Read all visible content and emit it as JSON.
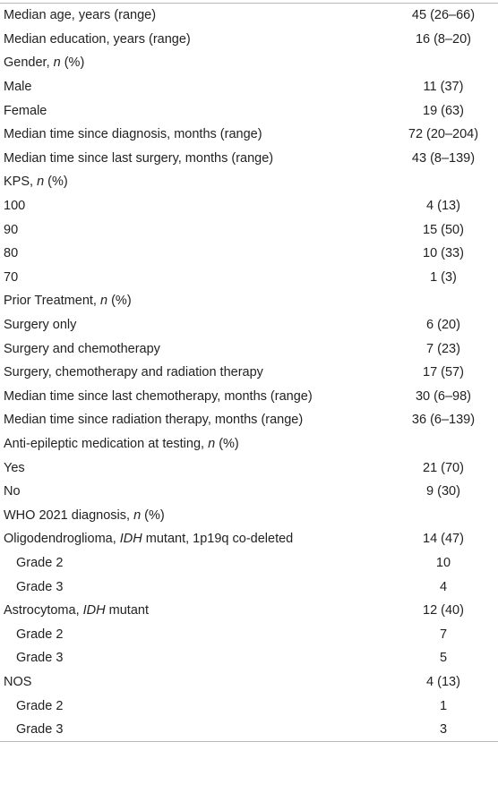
{
  "table": {
    "rows": [
      {
        "label": [
          "Median age, years (range)"
        ],
        "value": "45 (26–66)"
      },
      {
        "label": [
          "Median education, years (range)"
        ],
        "value": "16 (8–20)"
      },
      {
        "label": [
          "Gender, ",
          {
            "italic": "n"
          },
          " (%)"
        ]
      },
      {
        "label": [
          "Male"
        ],
        "value": "11 (37)"
      },
      {
        "label": [
          "Female"
        ],
        "value": "19 (63)"
      },
      {
        "label": [
          "Median time since diagnosis, months (range)"
        ],
        "value": "72 (20–204)"
      },
      {
        "label": [
          "Median time since last surgery, months (range)"
        ],
        "value": "43 (8–139)"
      },
      {
        "label": [
          "KPS, ",
          {
            "italic": "n"
          },
          " (%)"
        ]
      },
      {
        "label": [
          "100"
        ],
        "value": "4 (13)"
      },
      {
        "label": [
          "90"
        ],
        "value": "15 (50)"
      },
      {
        "label": [
          "80"
        ],
        "value": "10 (33)"
      },
      {
        "label": [
          "70"
        ],
        "value": "1 (3)"
      },
      {
        "label": [
          "Prior Treatment, ",
          {
            "italic": "n"
          },
          " (%)"
        ]
      },
      {
        "label": [
          "Surgery only"
        ],
        "value": "6 (20)"
      },
      {
        "label": [
          "Surgery and chemotherapy"
        ],
        "value": "7 (23)"
      },
      {
        "label": [
          "Surgery, chemotherapy and radiation therapy"
        ],
        "value": "17 (57)"
      },
      {
        "label": [
          "Median time since last chemotherapy, months (range)"
        ],
        "value": "30 (6–98)"
      },
      {
        "label": [
          "Median time since radiation therapy, months (range)"
        ],
        "value": "36 (6–139)"
      },
      {
        "label": [
          "Anti-epileptic medication at testing, ",
          {
            "italic": "n"
          },
          " (%)"
        ]
      },
      {
        "label": [
          "Yes"
        ],
        "value": "21 (70)"
      },
      {
        "label": [
          "No"
        ],
        "value": "9 (30)"
      },
      {
        "label": [
          "WHO 2021 diagnosis, ",
          {
            "italic": "n"
          },
          " (%)"
        ]
      },
      {
        "label": [
          "Oligodendroglioma, ",
          {
            "italic": "IDH"
          },
          " mutant, 1p19q co-deleted"
        ],
        "value": "14 (47)"
      },
      {
        "label": [
          "Grade 2"
        ],
        "value": "10",
        "indent": true
      },
      {
        "label": [
          "Grade 3"
        ],
        "value": "4",
        "indent": true
      },
      {
        "label": [
          "Astrocytoma, ",
          {
            "italic": "IDH"
          },
          " mutant"
        ],
        "value": "12 (40)"
      },
      {
        "label": [
          "Grade 2"
        ],
        "value": "7",
        "indent": true
      },
      {
        "label": [
          "Grade 3"
        ],
        "value": "5",
        "indent": true
      },
      {
        "label": [
          "NOS"
        ],
        "value": "4 (13)"
      },
      {
        "label": [
          "Grade 2"
        ],
        "value": "1",
        "indent": true
      },
      {
        "label": [
          "Grade 3"
        ],
        "value": "3",
        "indent": true
      }
    ]
  }
}
